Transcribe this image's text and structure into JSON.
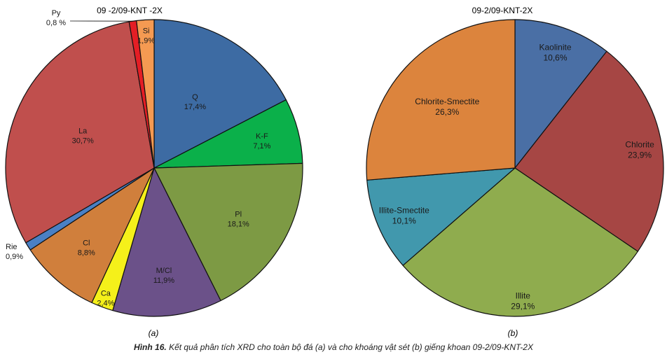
{
  "chart_data": [
    {
      "type": "pie",
      "title": "09 -2/09-KNT -2X",
      "sublabel": "(a)",
      "slices": [
        {
          "label": "Q",
          "value": 17.4,
          "value_text": "17,4%",
          "color": "#3d6ba3"
        },
        {
          "label": "K-F",
          "value": 7.1,
          "value_text": "7,1%",
          "color": "#0bb04a"
        },
        {
          "label": "Pl",
          "value": 18.1,
          "value_text": "18,1%",
          "color": "#7d9a44"
        },
        {
          "label": "M/Cl",
          "value": 11.9,
          "value_text": "11,9%",
          "color": "#6b5189"
        },
        {
          "label": "Ca",
          "value": 2.4,
          "value_text": "2,4%",
          "color": "#f5f01a"
        },
        {
          "label": "Cl",
          "value": 8.8,
          "value_text": "8,8%",
          "color": "#d07f3c"
        },
        {
          "label": "Rie",
          "value": 0.9,
          "value_text": "0,9%",
          "color": "#4a80c4"
        },
        {
          "label": "La",
          "value": 30.7,
          "value_text": "30,7%",
          "color": "#c04f4d"
        },
        {
          "label": "Py",
          "value": 0.8,
          "value_text": "0,8 %",
          "color": "#e41e25"
        },
        {
          "label": "Si",
          "value": 1.9,
          "value_text": "1,9%",
          "color": "#f59a52"
        }
      ]
    },
    {
      "type": "pie",
      "title": "09-2/09-KNT-2X",
      "sublabel": "(b)",
      "slices": [
        {
          "label": "Kaolinite",
          "value": 10.6,
          "value_text": "10,6%",
          "color": "#4a6fa5"
        },
        {
          "label": "Chlorite",
          "value": 23.9,
          "value_text": "23,9%",
          "color": "#a64644"
        },
        {
          "label": "Illite",
          "value": 29.1,
          "value_text": "29,1%",
          "color": "#8fac4e"
        },
        {
          "label": "Illite-Smectite",
          "value": 10.1,
          "value_text": "10,1%",
          "color": "#4198ad"
        },
        {
          "label": "Chlorite-Smectite",
          "value": 26.3,
          "value_text": "26,3%",
          "color": "#dc843d"
        }
      ]
    }
  ],
  "caption": {
    "bold": "Hình 16.",
    "text": "Kết quả phân tích XRD cho toàn bộ đá (a) và cho khoáng vật  sét (b) giếng khoan 09-2/09-KNT-2X"
  }
}
